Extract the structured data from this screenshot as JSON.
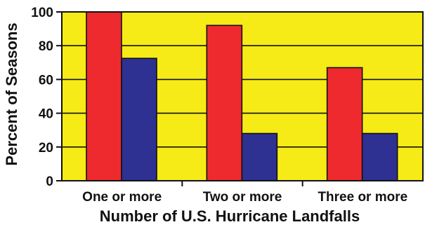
{
  "chart_data": {
    "type": "bar",
    "title": "",
    "xlabel": "Number of U.S. Hurricane Landfalls",
    "ylabel": "Percent of Seasons",
    "categories": [
      "One or more",
      "Two or more",
      "Three or more"
    ],
    "series": [
      {
        "color": "#ee2a2e",
        "values": [
          100,
          92,
          67
        ]
      },
      {
        "color": "#2e3192",
        "values": [
          72.5,
          28,
          28
        ]
      }
    ],
    "ylim": [
      0,
      100
    ],
    "yticks": [
      0,
      20,
      40,
      60,
      80,
      100
    ],
    "grid": true,
    "legend": "none",
    "plot_background": "#f6eb16"
  }
}
